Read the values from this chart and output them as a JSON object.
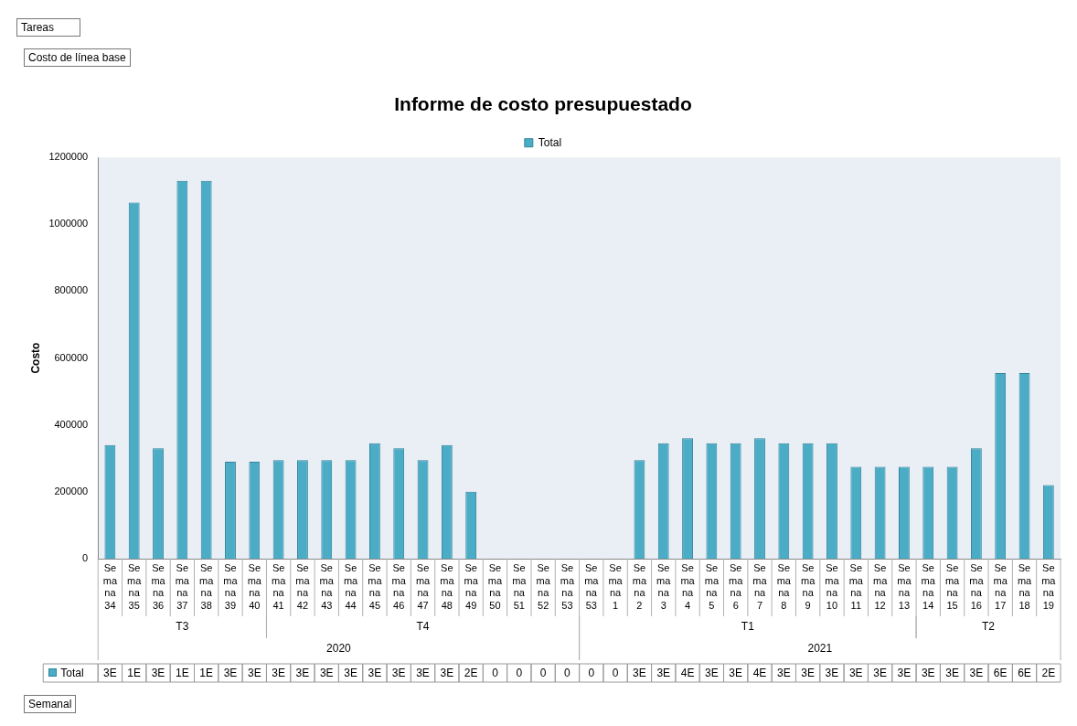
{
  "chart_data": {
    "type": "bar",
    "title": "Informe de costo presupuestado",
    "ylabel": "Costo",
    "categories": [
      "Semana 34",
      "Semana 35",
      "Semana 36",
      "Semana 37",
      "Semana 38",
      "Semana 39",
      "Semana 40",
      "Semana 41",
      "Semana 42",
      "Semana 43",
      "Semana 44",
      "Semana 45",
      "Semana 46",
      "Semana 47",
      "Semana 48",
      "Semana 49",
      "Semana 50",
      "Semana 51",
      "Semana 52",
      "Semana 53",
      "Semana 53",
      "Semana 1",
      "Semana 2",
      "Semana 3",
      "Semana 4",
      "Semana 5",
      "Semana 6",
      "Semana 7",
      "Semana 8",
      "Semana 9",
      "Semana 10",
      "Semana 11",
      "Semana 12",
      "Semana 13",
      "Semana 14",
      "Semana 15",
      "Semana 16",
      "Semana 17",
      "Semana 18",
      "Semana 19"
    ],
    "series": [
      {
        "name": "Total",
        "color": "#4bacc6",
        "values": [
          340000,
          1065000,
          330000,
          1130000,
          1130000,
          290000,
          290000,
          295000,
          295000,
          295000,
          295000,
          345000,
          330000,
          295000,
          340000,
          200000,
          0,
          0,
          0,
          0,
          0,
          0,
          295000,
          345000,
          360000,
          345000,
          345000,
          360000,
          345000,
          345000,
          345000,
          275000,
          275000,
          275000,
          275000,
          275000,
          330000,
          555000,
          555000,
          220000
        ]
      }
    ],
    "ylim": [
      0,
      1200000
    ],
    "yticks": [
      0,
      200000,
      400000,
      600000,
      800000,
      1000000,
      1200000
    ],
    "legend": "top",
    "annotations": [
      "Tareas",
      "Costo de línea base",
      "Semanal",
      "T3",
      "T4",
      "T1",
      "T2",
      "2020",
      "2021",
      "3E",
      "1E",
      "3E",
      "1E",
      "1E",
      "3E",
      "3E",
      "3E",
      "3E",
      "3E",
      "3E",
      "3E",
      "3E",
      "3E",
      "3E",
      "2E",
      "0",
      "0",
      "0",
      "0",
      "0",
      "0",
      "3E",
      "3E",
      "4E",
      "3E",
      "3E",
      "4E",
      "3E",
      "3E",
      "3E",
      "3E",
      "3E",
      "3E",
      "3E",
      "3E",
      "3E",
      "6E",
      "6E",
      "2E"
    ]
  }
}
